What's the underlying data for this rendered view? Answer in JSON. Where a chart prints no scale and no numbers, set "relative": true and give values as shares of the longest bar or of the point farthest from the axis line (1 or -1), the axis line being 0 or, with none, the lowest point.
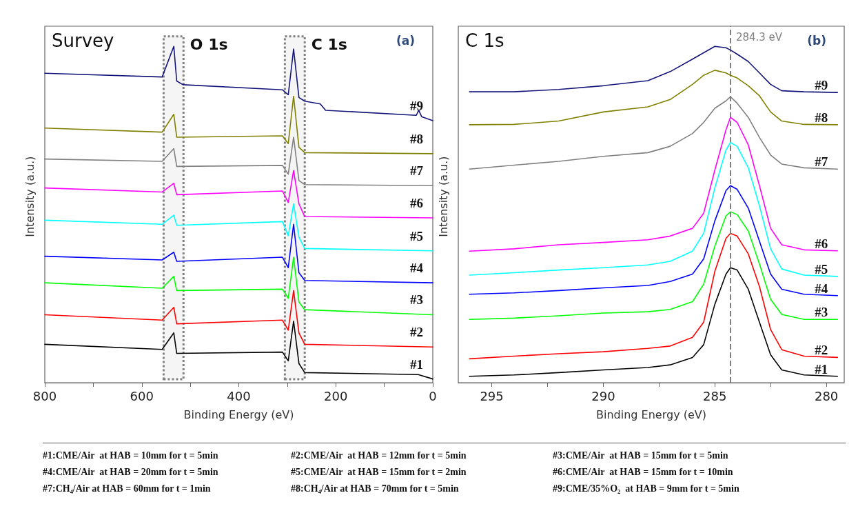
{
  "chart_data": [
    {
      "type": "line",
      "relative": true,
      "marker": "none",
      "line_style": "solid",
      "xlabel": "Binding Energy (eV)",
      "ylabel": "Intensity (a.u.)",
      "annotations": [
        "Survey",
        "(a)"
      ],
      "xlim": [
        800,
        0
      ],
      "xticks": [
        800,
        {
          "value": 700,
          "label": null
        },
        600,
        {
          "value": 500,
          "label": null
        },
        400,
        {
          "value": 300,
          "label": null
        },
        200,
        {
          "value": 100,
          "label": null
        },
        0
      ],
      "bands": [
        {
          "axis": "x",
          "from": 555,
          "to": 514,
          "label": "O 1s",
          "color": "#808080"
        },
        {
          "axis": "x",
          "from": 305,
          "to": 264,
          "label": "C 1s",
          "color": "#808080"
        }
      ],
      "series": [
        {
          "name": "#1",
          "color": "#000000",
          "x": [
            800,
            558,
            534,
            528,
            310,
            298,
            287,
            276,
            264,
            30,
            0
          ],
          "values": [
            0.114,
            0.099,
            0.148,
            0.087,
            0.091,
            0.065,
            0.183,
            0.057,
            0.03,
            0.024,
            0.011
          ]
        },
        {
          "name": "#2",
          "color": "#ff0000",
          "x": [
            800,
            558,
            534,
            528,
            310,
            298,
            287,
            276,
            264,
            0
          ],
          "values": [
            0.202,
            0.186,
            0.224,
            0.175,
            0.186,
            0.156,
            0.274,
            0.148,
            0.114,
            0.106
          ]
        },
        {
          "name": "#3",
          "color": "#00ff00",
          "x": [
            800,
            558,
            534,
            528,
            310,
            298,
            287,
            276,
            264,
            0
          ],
          "values": [
            0.297,
            0.281,
            0.316,
            0.274,
            0.278,
            0.251,
            0.373,
            0.24,
            0.217,
            0.202
          ]
        },
        {
          "name": "#4",
          "color": "#0000ff",
          "x": [
            800,
            558,
            534,
            528,
            310,
            298,
            287,
            276,
            264,
            0
          ],
          "values": [
            0.376,
            0.365,
            0.388,
            0.361,
            0.373,
            0.342,
            0.471,
            0.327,
            0.304,
            0.297
          ]
        },
        {
          "name": "#5",
          "color": "#00ffff",
          "x": [
            800,
            558,
            534,
            528,
            310,
            298,
            287,
            276,
            264,
            0
          ],
          "values": [
            0.483,
            0.471,
            0.498,
            0.468,
            0.479,
            0.437,
            0.532,
            0.433,
            0.399,
            0.392
          ]
        },
        {
          "name": "#6",
          "color": "#ff00ff",
          "x": [
            800,
            558,
            534,
            528,
            310,
            298,
            287,
            276,
            264,
            0
          ],
          "values": [
            0.579,
            0.567,
            0.593,
            0.559,
            0.57,
            0.536,
            0.631,
            0.532,
            0.494,
            0.49
          ]
        },
        {
          "name": "#7",
          "color": "#808080",
          "x": [
            800,
            558,
            534,
            528,
            310,
            298,
            287,
            276,
            264,
            0
          ],
          "values": [
            0.665,
            0.658,
            0.696,
            0.643,
            0.646,
            0.62,
            0.73,
            0.601,
            0.589,
            0.586
          ]
        },
        {
          "name": "#8",
          "color": "#808000",
          "x": [
            800,
            558,
            534,
            528,
            310,
            298,
            287,
            276,
            264,
            0
          ],
          "values": [
            0.757,
            0.745,
            0.798,
            0.73,
            0.734,
            0.711,
            0.852,
            0.7,
            0.684,
            0.681
          ]
        },
        {
          "name": "#9",
          "color": "#14147a",
          "x": [
            800,
            558,
            534,
            528,
            515,
            310,
            298,
            287,
            276,
            264,
            232,
            221,
            34,
            29,
            23,
            0
          ],
          "values": [
            0.92,
            0.909,
            1.0,
            0.897,
            0.886,
            0.871,
            0.856,
            0.992,
            0.848,
            0.837,
            0.829,
            0.81,
            0.795,
            0.81,
            0.791,
            0.779
          ]
        }
      ]
    },
    {
      "type": "line",
      "relative": true,
      "marker": "none",
      "line_style": "solid",
      "xlabel": "Binding Energy (eV)",
      "ylabel": "Intensity (a.u.)",
      "annotations": [
        "C 1s",
        "(b)"
      ],
      "xlim": [
        296.5,
        279.2
      ],
      "xticks": [
        295,
        {
          "value": 292.5,
          "label": null
        },
        290,
        {
          "value": 287.5,
          "label": null
        },
        285,
        {
          "value": 282.5,
          "label": null
        },
        280
      ],
      "ref_lines": [
        {
          "axis": "x",
          "value": 284.3,
          "label": "284.3 eV",
          "color": "#808080",
          "line_style": "dashed"
        }
      ],
      "x": [
        296,
        294,
        292,
        290,
        288,
        287,
        286,
        285.5,
        285,
        284.5,
        284.3,
        284,
        283.5,
        283,
        282.5,
        282,
        281,
        279.5
      ],
      "series": [
        {
          "name": "#1",
          "color": "#000000",
          "values": [
            0.019,
            0.023,
            0.03,
            0.038,
            0.045,
            0.053,
            0.075,
            0.113,
            0.233,
            0.323,
            0.342,
            0.335,
            0.278,
            0.18,
            0.083,
            0.038,
            0.023,
            0.019
          ]
        },
        {
          "name": "#2",
          "color": "#ff0000",
          "values": [
            0.071,
            0.079,
            0.086,
            0.092,
            0.102,
            0.109,
            0.135,
            0.18,
            0.331,
            0.429,
            0.444,
            0.436,
            0.383,
            0.286,
            0.158,
            0.098,
            0.079,
            0.075
          ]
        },
        {
          "name": "#3",
          "color": "#00ff00",
          "values": [
            0.188,
            0.192,
            0.199,
            0.207,
            0.211,
            0.218,
            0.241,
            0.293,
            0.406,
            0.496,
            0.508,
            0.5,
            0.451,
            0.353,
            0.248,
            0.203,
            0.188,
            0.188
          ]
        },
        {
          "name": "#4",
          "color": "#0000ff",
          "values": [
            0.263,
            0.267,
            0.274,
            0.282,
            0.289,
            0.301,
            0.323,
            0.368,
            0.481,
            0.571,
            0.586,
            0.575,
            0.519,
            0.421,
            0.323,
            0.278,
            0.263,
            0.259
          ]
        },
        {
          "name": "#5",
          "color": "#00ffff",
          "values": [
            0.32,
            0.327,
            0.335,
            0.342,
            0.35,
            0.361,
            0.391,
            0.444,
            0.579,
            0.692,
            0.714,
            0.703,
            0.639,
            0.526,
            0.398,
            0.338,
            0.32,
            0.316
          ]
        },
        {
          "name": "#6",
          "color": "#ff00ff",
          "values": [
            0.391,
            0.398,
            0.41,
            0.417,
            0.425,
            0.436,
            0.459,
            0.504,
            0.632,
            0.752,
            0.789,
            0.774,
            0.707,
            0.586,
            0.459,
            0.41,
            0.395,
            0.392
          ]
        },
        {
          "name": "#7",
          "color": "#808080",
          "values": [
            0.635,
            0.647,
            0.658,
            0.673,
            0.684,
            0.703,
            0.741,
            0.774,
            0.816,
            0.838,
            0.85,
            0.831,
            0.789,
            0.729,
            0.677,
            0.65,
            0.639,
            0.635
          ]
        },
        {
          "name": "#8",
          "color": "#808000",
          "values": [
            0.767,
            0.768,
            0.778,
            0.805,
            0.82,
            0.842,
            0.887,
            0.914,
            0.929,
            0.921,
            0.914,
            0.906,
            0.883,
            0.853,
            0.805,
            0.778,
            0.768,
            0.767
          ]
        },
        {
          "name": "#9",
          "color": "#14147a",
          "values": [
            0.865,
            0.865,
            0.872,
            0.883,
            0.898,
            0.925,
            0.962,
            0.981,
            1.0,
            0.996,
            0.989,
            0.977,
            0.955,
            0.921,
            0.887,
            0.868,
            0.865,
            0.863
          ]
        }
      ]
    },
    {
      "type": "other",
      "annotations": [
        "#1:CME/Air  at HAB = 10mm for t = 5min",
        "#2:CME/Air  at HAB = 12mm for t = 5min",
        "#3:CME/Air  at HAB = 15mm for t = 5min",
        "#4:CME/Air  at HAB = 20mm for t = 5min",
        "#5:CME/Air  at HAB = 15mm for t = 2min",
        "#6:CME/Air  at HAB = 15mm for t = 10min",
        "#7:CH₄/Air at HAB = 60mm for t = 1min",
        "#8:CH₄/Air at HAB = 70mm for t = 5min",
        "#9:CME/35%O₂  at HAB = 9mm for t = 5min"
      ]
    }
  ]
}
